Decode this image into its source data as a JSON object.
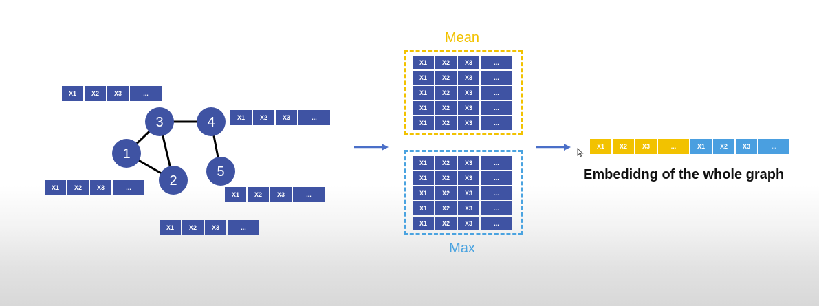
{
  "feature_vector": [
    "X1",
    "X2",
    "X3",
    "..."
  ],
  "graph": {
    "nodes": [
      "1",
      "2",
      "3",
      "4",
      "5"
    ],
    "edges": [
      [
        "1",
        "3"
      ],
      [
        "1",
        "2"
      ],
      [
        "3",
        "2"
      ],
      [
        "3",
        "4"
      ],
      [
        "4",
        "5"
      ]
    ]
  },
  "pooling": {
    "mean_label": "Mean",
    "max_label": "Max",
    "rows": 5
  },
  "embedding": {
    "mean_part": [
      "X1",
      "X2",
      "X3",
      "..."
    ],
    "max_part": [
      "X1",
      "X2",
      "X3",
      "..."
    ],
    "caption": "Embedidng of the whole graph"
  },
  "colors": {
    "node": "#3f53a3",
    "mean": "#f2c200",
    "max": "#4aa3e0",
    "arrow": "#4a6fc8"
  }
}
